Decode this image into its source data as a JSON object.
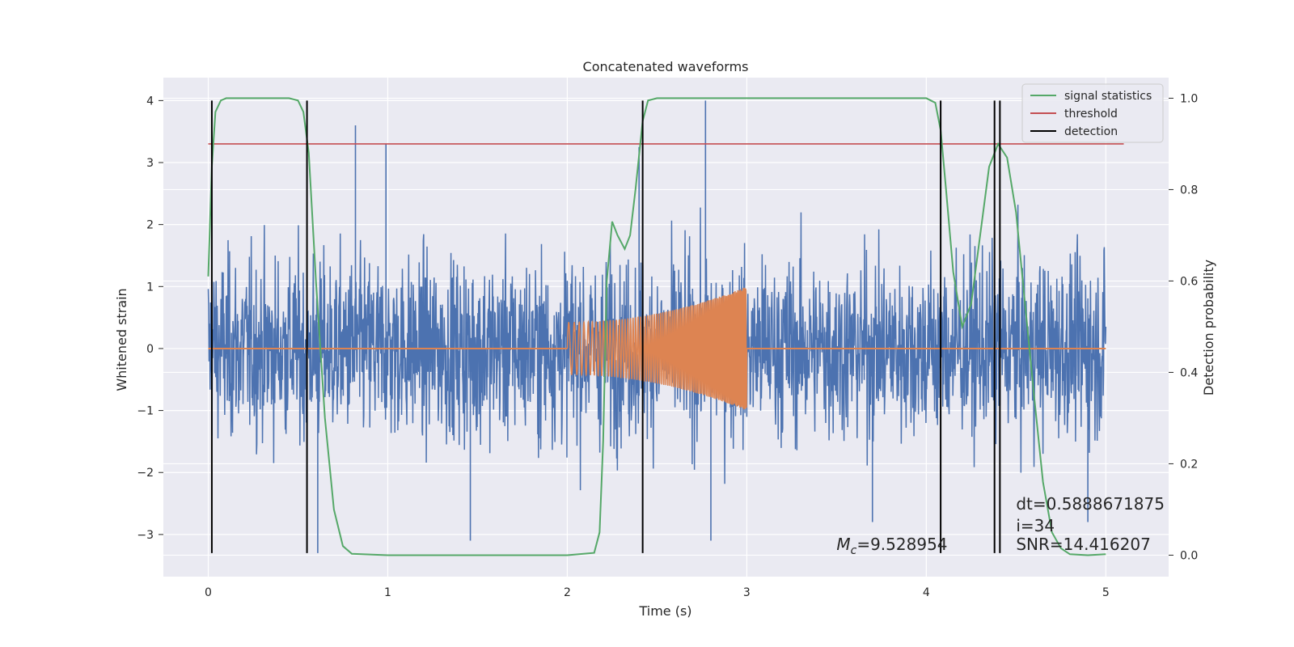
{
  "chart_data": {
    "type": "line",
    "title": "Concatenated waveforms",
    "xlabel": "Time (s)",
    "ylabel": "Whitened strain",
    "y2label": "Detection probability",
    "xlim": [
      -0.25,
      5.35
    ],
    "ylim": [
      -3.68,
      4.37
    ],
    "y2lim": [
      -0.047,
      1.045
    ],
    "xticks": [
      "0",
      "1",
      "2",
      "3",
      "4",
      "5"
    ],
    "yticks": [
      "4",
      "3",
      "2",
      "1",
      "0",
      "−1",
      "−2",
      "−3"
    ],
    "y2ticks": [
      "1.0",
      "0.8",
      "0.6",
      "0.4",
      "0.2",
      "0.0"
    ],
    "grid": true,
    "legend_position": "upper right",
    "legend": [
      "signal statistics",
      "threshold",
      "detection"
    ],
    "colors": {
      "noise": "#4c72b0",
      "injected_signal": "#dd8452",
      "signal_statistics": "#55a868",
      "threshold": "#c44e52",
      "detection": "#000000",
      "axes_background": "#eaeaf2"
    },
    "series": [
      {
        "role": "whitened strain (noise)",
        "x_range": [
          0,
          5
        ],
        "envelope_typical": [
          -1.5,
          1.5
        ],
        "spikes": [
          {
            "x": 0.82,
            "y": 3.6
          },
          {
            "x": 0.99,
            "y": 3.3
          },
          {
            "x": 2.4,
            "y": 3.25
          },
          {
            "x": 2.77,
            "y": 4.0
          },
          {
            "x": 0.61,
            "y": -3.3
          },
          {
            "x": 1.46,
            "y": -3.1
          },
          {
            "x": 2.8,
            "y": -3.1
          },
          {
            "x": 3.7,
            "y": -2.8
          },
          {
            "x": 4.9,
            "y": -2.8
          }
        ]
      },
      {
        "role": "injected chirp",
        "x_range": [
          2.0,
          3.0
        ],
        "amplitude_start": 0.42,
        "amplitude_end": 1.0,
        "baseline": 0
      },
      {
        "name": "signal statistics",
        "axis": "right",
        "x": [
          0.0,
          0.02,
          0.04,
          0.07,
          0.1,
          0.2,
          0.45,
          0.5,
          0.53,
          0.56,
          0.6,
          0.65,
          0.7,
          0.75,
          0.8,
          1.0,
          1.5,
          2.0,
          2.15,
          2.18,
          2.2,
          2.22,
          2.25,
          2.28,
          2.32,
          2.35,
          2.38,
          2.42,
          2.45,
          2.5,
          2.6,
          3.0,
          4.0,
          4.05,
          4.08,
          4.11,
          4.15,
          4.2,
          4.25,
          4.3,
          4.35,
          4.4,
          4.45,
          4.5,
          4.55,
          4.6,
          4.65,
          4.7,
          4.75,
          4.8,
          4.9,
          5.0
        ],
        "values": [
          0.61,
          0.85,
          0.97,
          0.995,
          1.0,
          1.0,
          1.0,
          0.995,
          0.97,
          0.88,
          0.6,
          0.3,
          0.1,
          0.02,
          0.003,
          0.0,
          0.0,
          0.0,
          0.005,
          0.05,
          0.25,
          0.6,
          0.73,
          0.7,
          0.67,
          0.7,
          0.8,
          0.95,
          0.995,
          1.0,
          1.0,
          1.0,
          1.0,
          0.99,
          0.93,
          0.8,
          0.62,
          0.5,
          0.55,
          0.7,
          0.85,
          0.9,
          0.87,
          0.75,
          0.55,
          0.35,
          0.16,
          0.05,
          0.015,
          0.002,
          0.0,
          0.002
        ]
      },
      {
        "name": "threshold",
        "axis": "right",
        "x": [
          0.0,
          5.1
        ],
        "values": [
          0.9,
          0.9
        ]
      },
      {
        "name": "detection",
        "type": "vlines",
        "x": [
          0.02,
          0.55,
          2.42,
          4.08,
          4.38,
          4.41
        ],
        "y_range": [
          -3.3,
          4.0
        ]
      }
    ],
    "annotations": [
      {
        "text_math": "M",
        "text_sub": "c",
        "text": "=9.528954",
        "x": 3.5,
        "y": -3.25
      },
      {
        "text": "dt=0.5888671875",
        "x": 4.5,
        "y": -2.6
      },
      {
        "text": " i=34",
        "x": 4.5,
        "y": -2.95
      },
      {
        "text": "SNR=14.416207",
        "x": 4.5,
        "y": -3.25
      }
    ]
  }
}
